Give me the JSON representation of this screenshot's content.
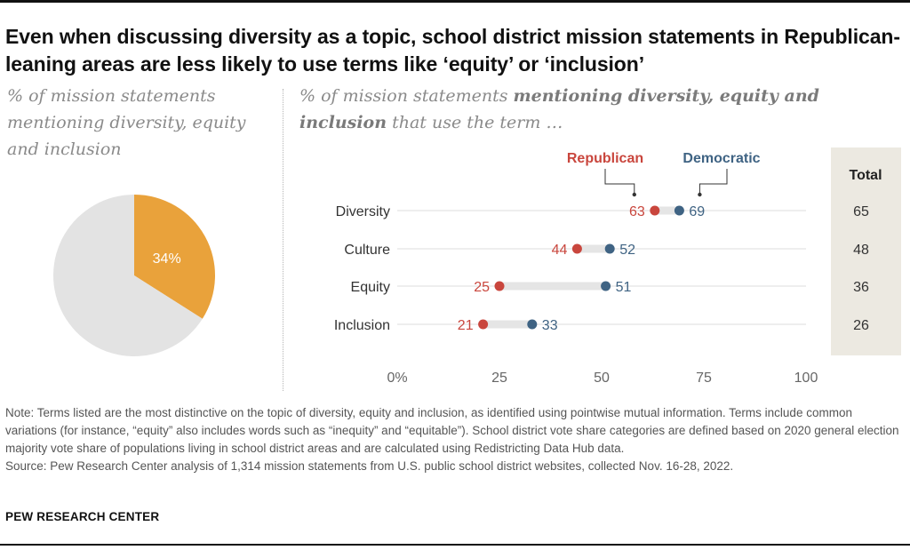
{
  "headline": "Even when discussing diversity as a topic, school district mission statements in Republican-leaning areas are less likely to use terms like ‘equity’ or ‘inclusion’",
  "left_panel": {
    "subtitle": "% of mission statements mentioning diversity, equity and inclusion"
  },
  "right_panel": {
    "subtitle_plain_1": "% of mission statements ",
    "subtitle_bold": "mentioning diversity, equity and inclusion",
    "subtitle_plain_2": " that use the term …"
  },
  "colors": {
    "pie_highlight": "#e9a23b",
    "pie_rest": "#e3e3e3",
    "republican": "#c9463d",
    "democratic": "#3f6383",
    "total_bg": "#ece9e1",
    "range_bar": "#e5e5e5",
    "grid": "#dcdcdc",
    "axis_text": "#666666"
  },
  "chart_data": [
    {
      "type": "pie",
      "slices": [
        {
          "label": "34%",
          "value": 34
        },
        {
          "label": "",
          "value": 66
        }
      ]
    },
    {
      "type": "dot_range",
      "categories": [
        "Diversity",
        "Culture",
        "Equity",
        "Inclusion"
      ],
      "series": [
        {
          "name": "Republican",
          "values": [
            63,
            44,
            25,
            21
          ]
        },
        {
          "name": "Democratic",
          "values": [
            69,
            52,
            51,
            33
          ]
        }
      ],
      "total": {
        "name": "Total",
        "values": [
          65,
          48,
          36,
          26
        ]
      },
      "xlim": [
        0,
        100
      ],
      "xticks": [
        "0%",
        "25",
        "50",
        "75",
        "100"
      ]
    }
  ],
  "footer": {
    "note": "Note: Terms listed are the most distinctive on the topic of diversity, equity and inclusion, as identified using pointwise mutual information. Terms include common variations (for instance, “equity” also includes words such as “inequity” and “equitable”). School district vote share categories are defined based on 2020 general election majority vote share of populations living in school district areas and are calculated using Redistricting Data Hub data.",
    "source": "Source: Pew Research Center analysis of 1,314 mission statements from U.S. public school district websites, collected Nov. 16-28, 2022.",
    "brand": "PEW RESEARCH CENTER"
  }
}
